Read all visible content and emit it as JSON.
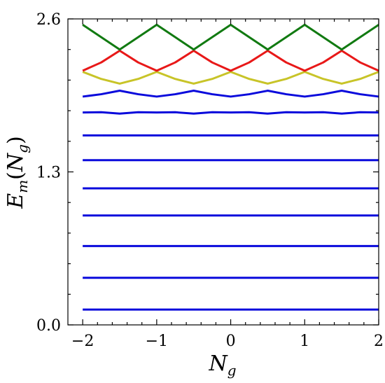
{
  "chart_data": {
    "type": "line",
    "xlabel": {
      "base": "N",
      "sub": "g"
    },
    "ylabel": {
      "base": "E",
      "sub": "m",
      "open": "(",
      "arg_base": "N",
      "arg_sub": "g",
      "close": ")"
    },
    "xlim": [
      -2.2,
      2.0
    ],
    "ylim": [
      0.0,
      2.6
    ],
    "x_ticks": [
      -2,
      -1,
      0,
      1,
      2
    ],
    "x_tick_labels": [
      "−2",
      "−1",
      "0",
      "1",
      "2"
    ],
    "y_ticks": [
      0.0,
      1.3,
      2.6
    ],
    "y_tick_labels": [
      "0.0",
      "1.3",
      "2.6"
    ],
    "grid": false,
    "legend": "none",
    "colors": {
      "band_blue": "#0a0adc",
      "band_yellow": "#c8c428",
      "band_red": "#e81818",
      "band_green": "#117a11"
    },
    "series": [
      {
        "color_key": "band_blue",
        "x": [
          -2,
          2
        ],
        "y": [
          0.13,
          0.13
        ]
      },
      {
        "color_key": "band_blue",
        "x": [
          -2,
          2
        ],
        "y": [
          0.4,
          0.4
        ]
      },
      {
        "color_key": "band_blue",
        "x": [
          -2,
          2
        ],
        "y": [
          0.67,
          0.67
        ]
      },
      {
        "color_key": "band_blue",
        "x": [
          -2,
          2
        ],
        "y": [
          0.93,
          0.93
        ]
      },
      {
        "color_key": "band_blue",
        "x": [
          -2,
          2
        ],
        "y": [
          1.16,
          1.16
        ]
      },
      {
        "color_key": "band_blue",
        "x": [
          -2,
          2
        ],
        "y": [
          1.4,
          1.4
        ]
      },
      {
        "color_key": "band_blue",
        "x": [
          -2,
          2
        ],
        "y": [
          1.61,
          1.61
        ]
      },
      {
        "color_key": "band_blue",
        "x": [
          -2,
          -1.75,
          -1.5,
          -1.25,
          -1,
          -0.75,
          -0.5,
          -0.25,
          0,
          0.25,
          0.5,
          0.75,
          1,
          1.25,
          1.5,
          1.75,
          2
        ],
        "y": [
          1.805,
          1.807,
          1.795,
          1.807,
          1.805,
          1.807,
          1.795,
          1.807,
          1.805,
          1.807,
          1.795,
          1.807,
          1.805,
          1.807,
          1.795,
          1.807,
          1.805
        ]
      },
      {
        "color_key": "band_blue",
        "x": [
          -2,
          -1.75,
          -1.5,
          -1.25,
          -1,
          -0.75,
          -0.5,
          -0.25,
          0,
          0.25,
          0.5,
          0.75,
          1,
          1.25,
          1.5,
          1.75,
          2
        ],
        "y": [
          1.94,
          1.96,
          1.99,
          1.96,
          1.94,
          1.96,
          1.99,
          1.96,
          1.94,
          1.96,
          1.99,
          1.96,
          1.94,
          1.96,
          1.99,
          1.96,
          1.94
        ]
      },
      {
        "color_key": "band_yellow",
        "x": [
          -2,
          -1.75,
          -1.5,
          -1.25,
          -1,
          -0.75,
          -0.5,
          -0.25,
          0,
          0.25,
          0.5,
          0.75,
          1,
          1.25,
          1.5,
          1.75,
          2
        ],
        "y": [
          2.15,
          2.09,
          2.05,
          2.09,
          2.15,
          2.09,
          2.05,
          2.09,
          2.15,
          2.09,
          2.05,
          2.09,
          2.15,
          2.09,
          2.05,
          2.09,
          2.15
        ]
      },
      {
        "color_key": "band_red",
        "x": [
          -2,
          -1.75,
          -1.5,
          -1.25,
          -1,
          -0.75,
          -0.5,
          -0.25,
          0,
          0.25,
          0.5,
          0.75,
          1,
          1.25,
          1.5,
          1.75,
          2
        ],
        "y": [
          2.16,
          2.23,
          2.33,
          2.23,
          2.16,
          2.23,
          2.33,
          2.23,
          2.16,
          2.23,
          2.33,
          2.23,
          2.16,
          2.23,
          2.33,
          2.23,
          2.16
        ]
      },
      {
        "color_key": "band_green",
        "x": [
          -2,
          -1.5,
          -1,
          -0.5,
          0,
          0.5,
          1,
          1.5,
          2
        ],
        "y": [
          2.55,
          2.34,
          2.55,
          2.34,
          2.55,
          2.34,
          2.55,
          2.34,
          2.55
        ]
      }
    ]
  }
}
